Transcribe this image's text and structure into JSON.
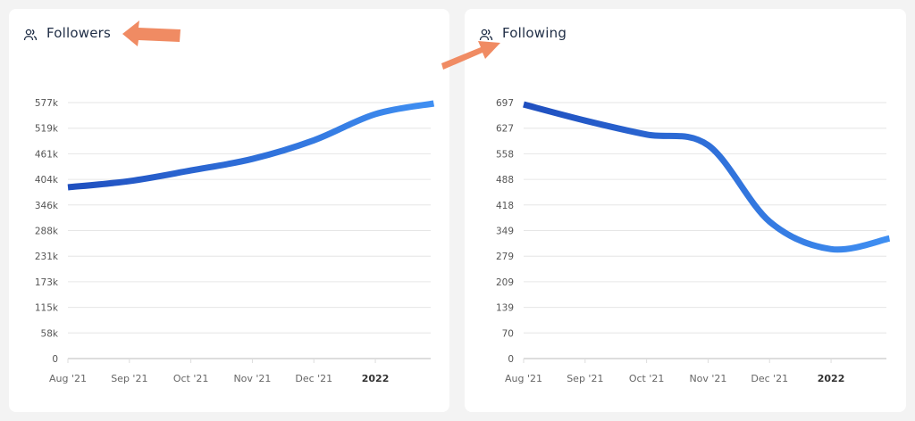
{
  "colors": {
    "line_start": "#1f4fbf",
    "line_end": "#3f8ff2",
    "arrow": "#f08b63",
    "grid": "#e6e6e6"
  },
  "chart_data": [
    {
      "type": "line",
      "title": "Followers",
      "icon": "users-icon",
      "categories": [
        "Aug '21",
        "Sep '21",
        "Oct '21",
        "Nov '21",
        "Dec '21",
        "2022"
      ],
      "bold_categories": [
        "2022"
      ],
      "yticks": [
        "0",
        "58k",
        "115k",
        "173k",
        "231k",
        "288k",
        "346k",
        "404k",
        "461k",
        "519k",
        "577k"
      ],
      "ylim": [
        0,
        577
      ],
      "x": [
        0,
        1,
        2,
        3,
        4,
        5,
        5.95
      ],
      "values": [
        386,
        400,
        424,
        450,
        492,
        551,
        575
      ]
    },
    {
      "type": "line",
      "title": "Following",
      "icon": "users-icon",
      "categories": [
        "Aug '21",
        "Sep '21",
        "Oct '21",
        "Nov '21",
        "Dec '21",
        "2022"
      ],
      "bold_categories": [
        "2022"
      ],
      "yticks": [
        "0",
        "70",
        "139",
        "209",
        "279",
        "349",
        "418",
        "488",
        "558",
        "627",
        "697"
      ],
      "ylim": [
        0,
        697
      ],
      "x": [
        0,
        1,
        2,
        3,
        4,
        5,
        5.95
      ],
      "values": [
        692,
        648,
        610,
        581,
        373,
        298,
        327
      ]
    }
  ]
}
